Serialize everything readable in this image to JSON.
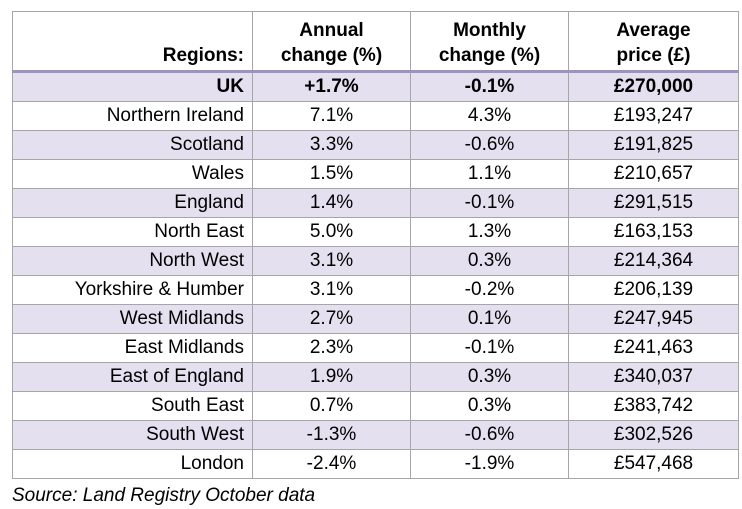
{
  "chart_data": {
    "type": "table",
    "columns": [
      "Regions:",
      "Annual change (%)",
      "Monthly change (%)",
      "Average price (£)"
    ],
    "header_lines": [
      [
        "Regions:"
      ],
      [
        "Annual",
        "change (%)"
      ],
      [
        "Monthly",
        "change (%)"
      ],
      [
        "Average",
        "price (£)"
      ]
    ],
    "rows": [
      {
        "region": "UK",
        "annual": "+1.7%",
        "monthly": "-0.1%",
        "price": "£270,000"
      },
      {
        "region": "Northern Ireland",
        "annual": "7.1%",
        "monthly": "4.3%",
        "price": "£193,247"
      },
      {
        "region": "Scotland",
        "annual": "3.3%",
        "monthly": "-0.6%",
        "price": "£191,825"
      },
      {
        "region": "Wales",
        "annual": "1.5%",
        "monthly": "1.1%",
        "price": "£210,657"
      },
      {
        "region": "England",
        "annual": "1.4%",
        "monthly": "-0.1%",
        "price": "£291,515"
      },
      {
        "region": "North East",
        "annual": "5.0%",
        "monthly": "1.3%",
        "price": "£163,153"
      },
      {
        "region": "North West",
        "annual": "3.1%",
        "monthly": "0.3%",
        "price": "£214,364"
      },
      {
        "region": "Yorkshire & Humber",
        "annual": "3.1%",
        "monthly": "-0.2%",
        "price": "£206,139"
      },
      {
        "region": "West Midlands",
        "annual": "2.7%",
        "monthly": "0.1%",
        "price": "£247,945"
      },
      {
        "region": "East Midlands",
        "annual": "2.3%",
        "monthly": "-0.1%",
        "price": "£241,463"
      },
      {
        "region": "East of England",
        "annual": "1.9%",
        "monthly": "0.3%",
        "price": "£340,037"
      },
      {
        "region": "South East",
        "annual": "0.7%",
        "monthly": "0.3%",
        "price": "£383,742"
      },
      {
        "region": "South West",
        "annual": "-1.3%",
        "monthly": "-0.6%",
        "price": "£302,526"
      },
      {
        "region": "London",
        "annual": "-2.4%",
        "monthly": "-1.9%",
        "price": "£547,468"
      }
    ],
    "source": "Source: Land Registry October data"
  },
  "colors": {
    "header_rule": "#9e93bf",
    "stripe": "#e4e0ef",
    "grid": "#a6a6a6"
  }
}
